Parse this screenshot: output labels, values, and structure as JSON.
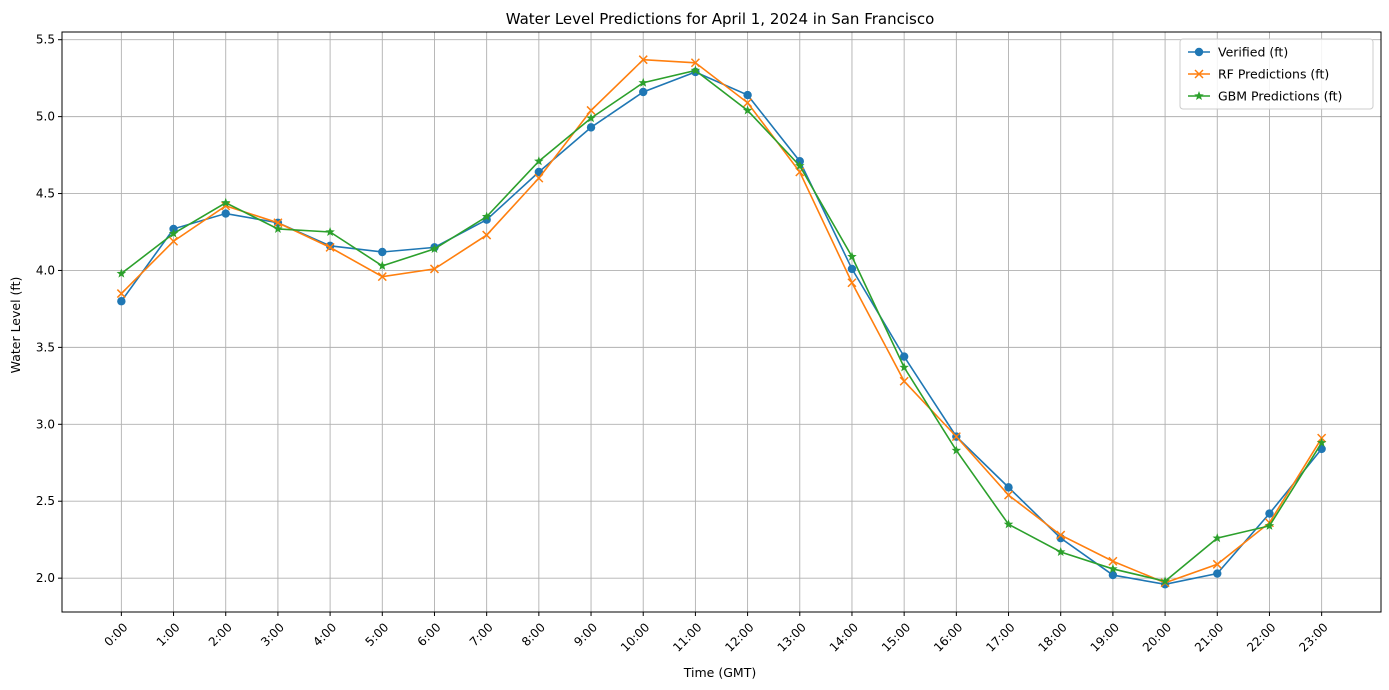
{
  "chart_data": {
    "type": "line",
    "title": "Water Level Predictions for April 1, 2024 in San Francisco",
    "xlabel": "Time (GMT)",
    "ylabel": "Water Level (ft)",
    "categories": [
      "0:00",
      "1:00",
      "2:00",
      "3:00",
      "4:00",
      "5:00",
      "6:00",
      "7:00",
      "8:00",
      "9:00",
      "10:00",
      "11:00",
      "12:00",
      "13:00",
      "14:00",
      "15:00",
      "16:00",
      "17:00",
      "18:00",
      "19:00",
      "20:00",
      "21:00",
      "22:00",
      "23:00"
    ],
    "ylim": [
      1.78,
      5.55
    ],
    "yticks": [
      "2.0",
      "2.5",
      "3.0",
      "3.5",
      "4.0",
      "4.5",
      "5.0",
      "5.5"
    ],
    "grid": true,
    "legend_position": "top-right",
    "series": [
      {
        "name": "Verified (ft)",
        "color": "#1f77b4",
        "marker": "circle",
        "values": [
          3.8,
          4.27,
          4.37,
          4.31,
          4.16,
          4.12,
          4.15,
          4.33,
          4.64,
          4.93,
          5.16,
          5.29,
          5.14,
          4.71,
          4.01,
          3.44,
          2.92,
          2.59,
          2.26,
          2.02,
          1.96,
          2.03,
          2.42,
          2.84
        ]
      },
      {
        "name": "RF Predictions (ft)",
        "color": "#ff7f0e",
        "marker": "x",
        "values": [
          3.85,
          4.19,
          4.42,
          4.31,
          4.15,
          3.96,
          4.01,
          4.23,
          4.6,
          5.04,
          5.37,
          5.35,
          5.09,
          4.64,
          3.92,
          3.28,
          2.92,
          2.54,
          2.28,
          2.11,
          1.97,
          2.09,
          2.36,
          2.91
        ]
      },
      {
        "name": "GBM Predictions (ft)",
        "color": "#2ca02c",
        "marker": "star",
        "values": [
          3.98,
          4.24,
          4.44,
          4.27,
          4.25,
          4.03,
          4.14,
          4.35,
          4.71,
          4.99,
          5.22,
          5.3,
          5.04,
          4.68,
          4.09,
          3.37,
          2.83,
          2.35,
          2.17,
          2.06,
          1.98,
          2.26,
          2.34,
          2.88
        ]
      }
    ]
  }
}
